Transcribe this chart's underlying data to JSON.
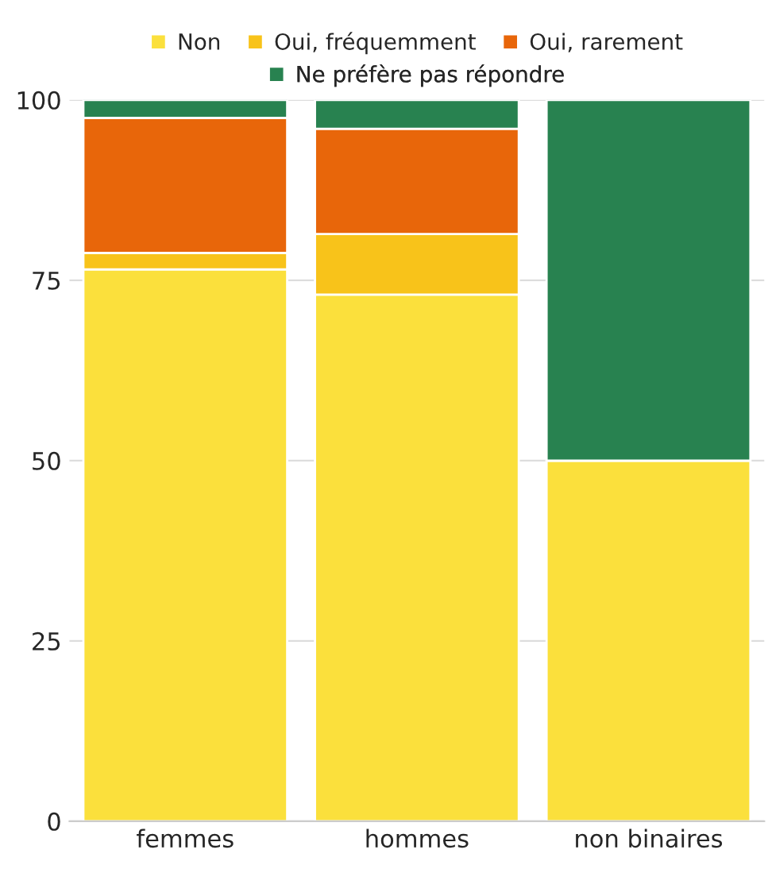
{
  "chart_data": {
    "type": "bar",
    "stacked": true,
    "categories": [
      "femmes",
      "hommes",
      "non binaires"
    ],
    "series": [
      {
        "name": "Non",
        "color": "#fbe03c",
        "values": [
          76.5,
          73.0,
          50
        ]
      },
      {
        "name": "Oui, fréquemment",
        "color": "#f8c31a",
        "values": [
          2.3,
          8.4,
          0
        ]
      },
      {
        "name": "Oui, rarement",
        "color": "#e8660a",
        "values": [
          18.7,
          14.6,
          0
        ]
      },
      {
        "name": "Ne préfère pas répondre",
        "color": "#288250",
        "values": [
          2.5,
          4.0,
          50
        ]
      }
    ],
    "ylim": [
      0,
      100
    ],
    "yticks": [
      0,
      25,
      50,
      75,
      100
    ],
    "grid": "y",
    "legend": "top"
  }
}
